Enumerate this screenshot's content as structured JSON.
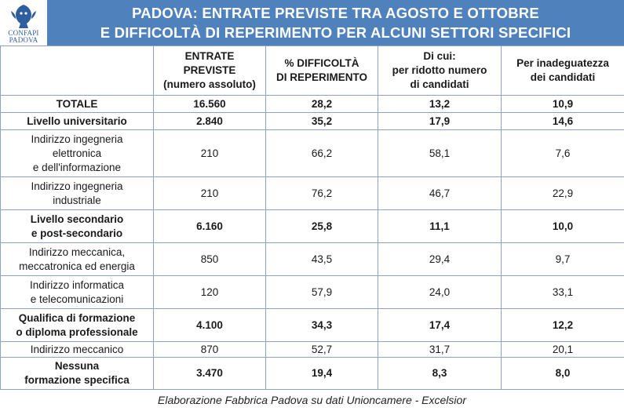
{
  "logo": {
    "line1": "CONFAPI",
    "line2": "PADOVA"
  },
  "title": {
    "line1": "PADOVA: ENTRATE PREVISTE TRA AGOSTO E OTTOBRE",
    "line2": "E DIFFICOLTÀ DI REPERIMENTO PER ALCUNI SETTORI SPECIFICI"
  },
  "headers": [
    [
      "ENTRATE",
      "PREVISTE",
      "(numero assoluto)"
    ],
    [
      "% DIFFICOLTÀ",
      "DI REPERIMENTO"
    ],
    [
      "Di cui:",
      "per ridotto numero",
      "di candidati"
    ],
    [
      "Per inadeguatezza",
      "dei candidati"
    ]
  ],
  "rows": [
    {
      "label": [
        "TOTALE"
      ],
      "bold": true,
      "values": [
        "16.560",
        "28,2",
        "13,2",
        "10,9"
      ]
    },
    {
      "label": [
        "Livello universitario"
      ],
      "bold": true,
      "values": [
        "2.840",
        "35,2",
        "17,9",
        "14,6"
      ]
    },
    {
      "label": [
        "Indirizzo ingegneria",
        "elettronica",
        "e dell'informazione"
      ],
      "bold": false,
      "values": [
        "210",
        "66,2",
        "58,1",
        "7,6"
      ]
    },
    {
      "label": [
        "Indirizzo ingegneria",
        "industriale"
      ],
      "bold": false,
      "values": [
        "210",
        "76,2",
        "46,7",
        "22,9"
      ]
    },
    {
      "label": [
        "Livello secondario",
        "e post-secondario"
      ],
      "bold": true,
      "values": [
        "6.160",
        "25,8",
        "11,1",
        "10,0"
      ]
    },
    {
      "label": [
        "Indirizzo meccanica,",
        "meccatronica ed energia"
      ],
      "bold": false,
      "values": [
        "850",
        "43,5",
        "29,4",
        "9,7"
      ]
    },
    {
      "label": [
        "Indirizzo informatica",
        "e telecomunicazioni"
      ],
      "bold": false,
      "values": [
        "120",
        "57,9",
        "24,0",
        "33,1"
      ]
    },
    {
      "label": [
        "Qualifica di formazione",
        "o diploma professionale"
      ],
      "bold": true,
      "values": [
        "4.100",
        "34,3",
        "17,4",
        "12,2"
      ]
    },
    {
      "label": [
        "Indirizzo meccanico"
      ],
      "bold": false,
      "values": [
        "870",
        "52,7",
        "31,7",
        "20,1"
      ]
    },
    {
      "label": [
        "Nessuna",
        "formazione specifica"
      ],
      "bold": true,
      "values": [
        "3.470",
        "19,4",
        "8,3",
        "8,0"
      ]
    }
  ],
  "footer": "Elaborazione Fabbrica Padova su dati Unioncamere - Excelsior"
}
